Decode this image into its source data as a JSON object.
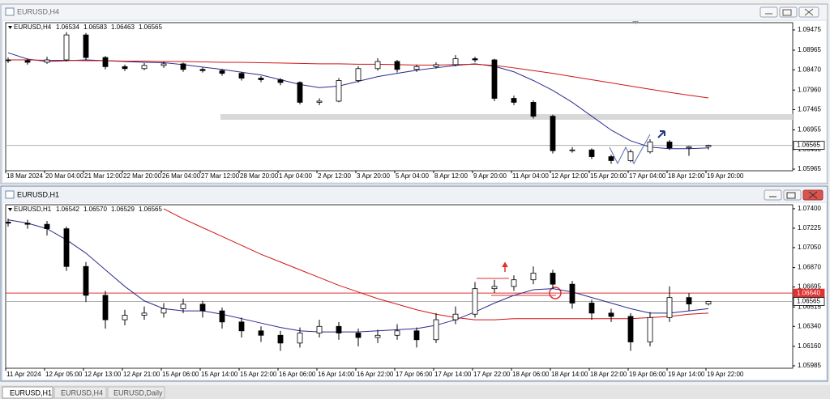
{
  "windows": [
    {
      "title": "EURUSD,H4",
      "chart": {
        "type": "candlestick",
        "info_labels": [
          "1.06534",
          "1.06583",
          "1.06463",
          "1.06565"
        ],
        "ylim": [
          1.05924,
          1.09659
        ],
        "yticks": [
          1.09475,
          1.08965,
          {
            "value": 1.0847,
            "label": "1.08470"
          },
          {
            "value": 1.0796,
            "label": "1.07960"
          },
          1.07465,
          1.06955,
          {
            "value": 1.0646,
            "label": "1.06460"
          },
          1.05965
        ],
        "xlabels": [
          "18 Mar 2024",
          "20 Mar 04:00",
          "21 Mar 12:00",
          "22 Mar 20:00",
          "26 Mar 04:00",
          "27 Mar 12:00",
          "28 Mar 20:00",
          "1 Apr 04:00",
          "2 Apr 12:00",
          "3 Apr 20:00",
          "5 Apr 04:00",
          "8 Apr 12:00",
          "9 Apr 20:00",
          "11 Apr 04:00",
          "12 Apr 12:00",
          "15 Apr 20:00",
          "17 Apr 04:00",
          "18 Apr 12:00",
          "19 Apr 20:00"
        ],
        "ohlc": [
          [
            1.0872,
            1.0878,
            1.0864,
            1.087
          ],
          [
            1.087,
            1.0875,
            1.086,
            1.0866
          ],
          [
            1.0866,
            1.088,
            1.0862,
            1.0872
          ],
          [
            1.0872,
            1.0942,
            1.0868,
            1.0935
          ],
          [
            1.0935,
            1.094,
            1.0872,
            1.0878
          ],
          [
            1.0878,
            1.0882,
            1.0848,
            1.0855
          ],
          [
            1.0855,
            1.086,
            1.0844,
            1.085
          ],
          [
            1.085,
            1.0864,
            1.0846,
            1.0858
          ],
          [
            1.0858,
            1.0868,
            1.0852,
            1.0862
          ],
          [
            1.0862,
            1.0865,
            1.0842,
            1.0848
          ],
          [
            1.0848,
            1.0853,
            1.084,
            1.0845
          ],
          [
            1.0845,
            1.0849,
            1.0832,
            1.0838
          ],
          [
            1.0838,
            1.0842,
            1.082,
            1.0826
          ],
          [
            1.0826,
            1.0831,
            1.0816,
            1.0822
          ],
          [
            1.0822,
            1.0826,
            1.0808,
            1.0815
          ],
          [
            1.0815,
            1.0818,
            1.076,
            1.0765
          ],
          [
            1.0765,
            1.0775,
            1.0758,
            1.0768
          ],
          [
            1.0768,
            1.0826,
            1.0765,
            1.082
          ],
          [
            1.082,
            1.0856,
            1.0815,
            1.085
          ],
          [
            1.085,
            1.0876,
            1.0845,
            1.0868
          ],
          [
            1.0868,
            1.0872,
            1.084,
            1.0848
          ],
          [
            1.0848,
            1.086,
            1.0842,
            1.0855
          ],
          [
            1.0855,
            1.0866,
            1.085,
            1.086
          ],
          [
            1.086,
            1.0884,
            1.0856,
            1.0875
          ],
          [
            1.0875,
            1.088,
            1.0866,
            1.0872
          ],
          [
            1.0872,
            1.0875,
            1.0768,
            1.0775
          ],
          [
            1.0775,
            1.0782,
            1.0758,
            1.0765
          ],
          [
            1.0765,
            1.077,
            1.0724,
            1.073
          ],
          [
            1.073,
            1.0734,
            1.0636,
            1.0643
          ],
          [
            1.0643,
            1.0652,
            1.0638,
            1.0645
          ],
          [
            1.0645,
            1.0649,
            1.0622,
            1.0628
          ],
          [
            1.0628,
            1.0633,
            1.061,
            1.0618
          ],
          [
            1.0618,
            1.0646,
            1.0614,
            1.064
          ],
          [
            1.064,
            1.0672,
            1.0636,
            1.0665
          ],
          [
            1.0665,
            1.067,
            1.0645,
            1.065
          ],
          [
            1.065,
            1.0655,
            1.063,
            1.0653
          ],
          [
            1.06534,
            1.06583,
            1.06463,
            1.06565
          ]
        ],
        "ma": [
          {
            "color": "#2b2b8f",
            "values": [
              1.089,
              1.0874,
              1.0868,
              1.087,
              1.0872,
              1.087,
              1.0868,
              1.0866,
              1.0865,
              1.086,
              1.0854,
              1.0848,
              1.0841,
              1.0834,
              1.0822,
              1.081,
              1.0802,
              1.0806,
              1.0818,
              1.083,
              1.0838,
              1.0846,
              1.0852,
              1.0858,
              1.0862,
              1.0856,
              1.0842,
              1.082,
              1.0795,
              1.0765,
              1.073,
              1.0695,
              1.0668,
              1.0652,
              1.0648,
              1.0648,
              1.065
            ]
          },
          {
            "color": "#d01515",
            "values": [
              1.0872,
              1.0872,
              1.0871,
              1.0871,
              1.087,
              1.087,
              1.0869,
              1.0869,
              1.0868,
              1.0868,
              1.0867,
              1.0866,
              1.0866,
              1.0865,
              1.0864,
              1.0863,
              1.0862,
              1.0862,
              1.0861,
              1.0861,
              1.086,
              1.0859,
              1.0859,
              1.086,
              1.0861,
              1.0858,
              1.0852,
              1.0845,
              1.0838,
              1.083,
              1.0822,
              1.0814,
              1.0806,
              1.0798,
              1.079,
              1.0783,
              1.0776
            ]
          }
        ],
        "price_lines": [
          {
            "value": 1.06565,
            "label": "1.06565",
            "color": "#b0b0b0"
          }
        ]
      }
    },
    {
      "title": "EURUSD,H1",
      "chart": {
        "type": "candlestick",
        "info_labels": [
          "1.06542",
          "1.06570",
          "1.06529",
          "1.06565"
        ],
        "ylim": [
          1.05963,
          1.07436
        ],
        "yticks": [
          {
            "value": 1.074,
            "label": "1.07400"
          },
          1.07225,
          {
            "value": 1.0705,
            "label": "1.07050"
          },
          {
            "value": 1.0687,
            "label": "1.06870"
          },
          1.06695,
          1.06515,
          {
            "value": 1.0634,
            "label": "1.06340"
          },
          {
            "value": 1.0616,
            "label": "1.06160"
          },
          1.05985
        ],
        "xlabels": [
          "11 Apr 2024",
          "12 Apr 05:00",
          "12 Apr 13:00",
          "12 Apr 21:00",
          "15 Apr 06:00",
          "15 Apr 14:00",
          "15 Apr 22:00",
          "16 Apr 06:00",
          "16 Apr 14:00",
          "16 Apr 22:00",
          "17 Apr 06:00",
          "17 Apr 14:00",
          "17 Apr 22:00",
          "18 Apr 06:00",
          "18 Apr 14:00",
          "18 Apr 22:00",
          "19 Apr 06:00",
          "19 Apr 14:00",
          "19 Apr 22:00"
        ],
        "ohlc": [
          [
            1.0728,
            1.0731,
            1.0724,
            1.0727
          ],
          [
            1.0727,
            1.073,
            1.0722,
            1.0726
          ],
          [
            1.0726,
            1.0729,
            1.0716,
            1.0722
          ],
          [
            1.0722,
            1.0724,
            1.0684,
            1.0688
          ],
          [
            1.0688,
            1.0692,
            1.0656,
            1.0662
          ],
          [
            1.0662,
            1.0666,
            1.0632,
            1.064
          ],
          [
            1.064,
            1.0649,
            1.0635,
            1.0644
          ],
          [
            1.0644,
            1.0652,
            1.064,
            1.0646
          ],
          [
            1.0646,
            1.0655,
            1.0642,
            1.065
          ],
          [
            1.065,
            1.0659,
            1.0646,
            1.0654
          ],
          [
            1.0654,
            1.0657,
            1.0642,
            1.0648
          ],
          [
            1.0648,
            1.0651,
            1.0632,
            1.0638
          ],
          [
            1.0638,
            1.0642,
            1.0624,
            1.063
          ],
          [
            1.063,
            1.0634,
            1.062,
            1.0626
          ],
          [
            1.0626,
            1.063,
            1.0612,
            1.0619
          ],
          [
            1.0619,
            1.0633,
            1.0615,
            1.0628
          ],
          [
            1.0628,
            1.064,
            1.0624,
            1.0634
          ],
          [
            1.0634,
            1.0638,
            1.0622,
            1.0628
          ],
          [
            1.0628,
            1.0632,
            1.0616,
            1.0624
          ],
          [
            1.0624,
            1.0631,
            1.0619,
            1.0626
          ],
          [
            1.0626,
            1.0636,
            1.0622,
            1.063
          ],
          [
            1.063,
            1.0633,
            1.0615,
            1.0622
          ],
          [
            1.0622,
            1.0646,
            1.0619,
            1.064
          ],
          [
            1.064,
            1.0652,
            1.0636,
            1.0645
          ],
          [
            1.0645,
            1.0674,
            1.0642,
            1.0668
          ],
          [
            1.0668,
            1.0676,
            1.0664,
            1.067
          ],
          [
            1.067,
            1.068,
            1.0666,
            1.0676
          ],
          [
            1.0676,
            1.0688,
            1.0672,
            1.0682
          ],
          [
            1.0682,
            1.0685,
            1.0668,
            1.0672
          ],
          [
            1.0672,
            1.0675,
            1.065,
            1.0655
          ],
          [
            1.0655,
            1.0658,
            1.064,
            1.0646
          ],
          [
            1.0646,
            1.065,
            1.0638,
            1.0643
          ],
          [
            1.0643,
            1.0646,
            1.0612,
            1.062
          ],
          [
            1.062,
            1.0647,
            1.0616,
            1.0642
          ],
          [
            1.0642,
            1.067,
            1.0638,
            1.066
          ],
          [
            1.066,
            1.0664,
            1.0648,
            1.06542
          ],
          [
            1.06542,
            1.0657,
            1.06529,
            1.06565
          ]
        ],
        "ma": [
          {
            "color": "#2b2b8f",
            "values": [
              1.073,
              1.0727,
              1.0722,
              1.0712,
              1.07,
              1.0685,
              1.067,
              1.0657,
              1.065,
              1.0648,
              1.0648,
              1.0645,
              1.0641,
              1.0637,
              1.0633,
              1.063,
              1.0629,
              1.0629,
              1.0629,
              1.063,
              1.0631,
              1.0632,
              1.0635,
              1.064,
              1.0647,
              1.0655,
              1.0662,
              1.0667,
              1.0668,
              1.0665,
              1.066,
              1.0655,
              1.065,
              1.0646,
              1.0646,
              1.0648,
              1.065
            ]
          },
          {
            "color": "#d01515",
            "values": [
              null,
              null,
              null,
              null,
              null,
              null,
              null,
              null,
              1.074,
              1.0731,
              1.0723,
              1.0715,
              1.0707,
              1.0699,
              1.0692,
              1.0685,
              1.0678,
              1.0671,
              1.0665,
              1.0659,
              1.0654,
              1.0649,
              1.0645,
              1.0642,
              1.064,
              1.064,
              1.0641,
              1.0641,
              1.0641,
              1.0641,
              1.0641,
              1.0641,
              1.0641,
              1.0642,
              1.0643,
              1.0645,
              1.0646
            ]
          }
        ],
        "price_lines": [
          {
            "value": 1.0664,
            "label": "1.06640",
            "color": "#e03030"
          },
          {
            "value": 1.06565,
            "label": "1.06565",
            "color": "#b0b0b0"
          }
        ]
      }
    }
  ],
  "tabs": [
    "EURUSD,H1",
    "EURUSD,H4",
    "EURUSD,Daily"
  ]
}
